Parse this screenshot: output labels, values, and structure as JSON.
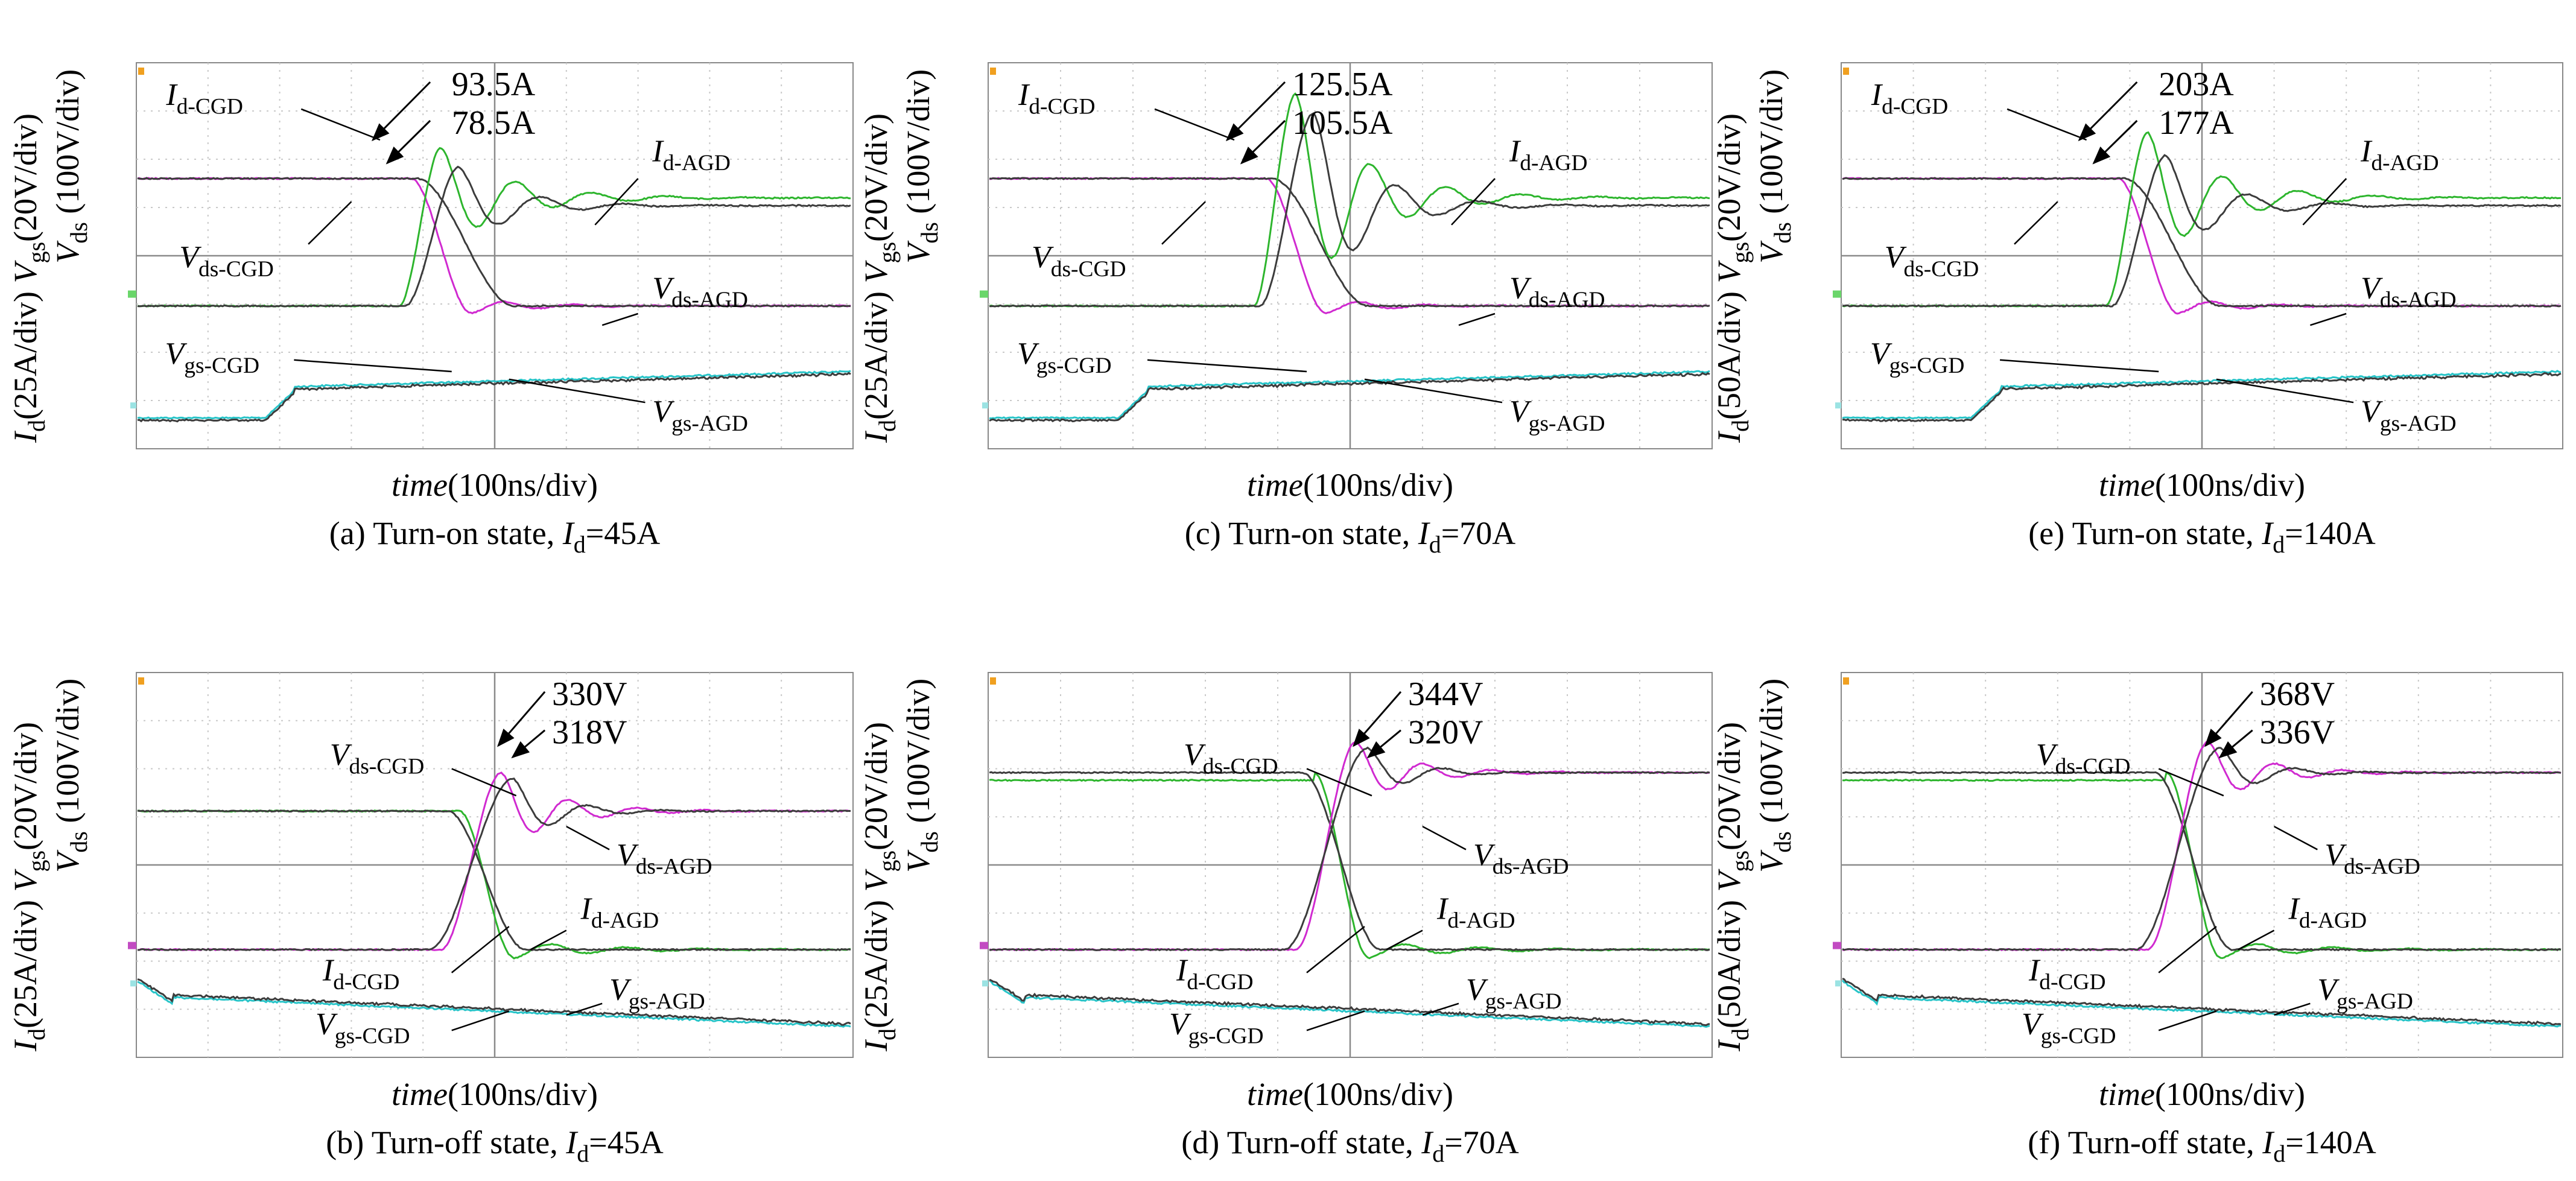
{
  "figure": {
    "colors": {
      "cgd_id": "#2db52d",
      "cgd_vds": "#d02ad0",
      "cgd_vgs": "#27c4c8",
      "agd": "#3c3c3c",
      "grid": "#c9c9c9",
      "frame": "#888888",
      "marker_green": "#6ad66a",
      "marker_magenta": "#c24bc2",
      "marker_cyan": "#9be3e3",
      "marker_orange": "#f0a020"
    },
    "axis_labels": {
      "y_vds": "V",
      "y_vds_sub": "ds",
      "y_vds_unit": "(100V/div)",
      "y_vgs": "V",
      "y_vgs_sub": "gs",
      "y_vgs_unit": "(20V/div)",
      "y_id": "I",
      "y_id_sub": "d",
      "x_time": "time",
      "x_time_unit": "(100ns/div)"
    },
    "panels": [
      {
        "id": "a",
        "caption": {
          "prefix": "(a) Turn-on state, ",
          "var": "I",
          "sub": "d",
          "suffix": "=45A"
        },
        "id_scale": "(25A/div)",
        "labels": {
          "l1": "I",
          "l1s": "d-CGD",
          "l2": "V",
          "l2s": "ds-CGD",
          "l3": "I",
          "l3s": "d-AGD",
          "l4": "V",
          "l4s": "ds-AGD",
          "l5": "V",
          "l5s": "gs-CGD",
          "l6": "V",
          "l6s": "gs-AGD"
        },
        "peaks": [
          "93.5A",
          "78.5A"
        ]
      },
      {
        "id": "b",
        "caption": {
          "prefix": "(b) Turn-off state, ",
          "var": "I",
          "sub": "d",
          "suffix": "=45A"
        },
        "id_scale": "(25A/div)",
        "labels": {
          "l1": "V",
          "l1s": "ds-CGD",
          "l2": "V",
          "l2s": "ds-AGD",
          "l3": "I",
          "l3s": "d-AGD",
          "l4": "I",
          "l4s": "d-CGD",
          "l5": "V",
          "l5s": "gs-AGD",
          "l6": "V",
          "l6s": "gs-CGD"
        },
        "peaks": [
          "330V",
          "318V"
        ]
      },
      {
        "id": "c",
        "caption": {
          "prefix": "(c) Turn-on state,  ",
          "var": "I",
          "sub": "d",
          "suffix": "=70A"
        },
        "id_scale": "(25A/div)",
        "labels": {
          "l1": "I",
          "l1s": "d-CGD",
          "l2": "V",
          "l2s": "ds-CGD",
          "l3": "I",
          "l3s": "d-AGD",
          "l4": "V",
          "l4s": "ds-AGD",
          "l5": "V",
          "l5s": "gs-CGD",
          "l6": "V",
          "l6s": "gs-AGD"
        },
        "peaks": [
          "125.5A",
          "105.5A"
        ]
      },
      {
        "id": "d",
        "caption": {
          "prefix": "(d) Turn-off state,  ",
          "var": "I",
          "sub": "d",
          "suffix": "=70A"
        },
        "id_scale": "(25A/div)",
        "labels": {
          "l1": "V",
          "l1s": "ds-CGD",
          "l2": "V",
          "l2s": "ds-AGD",
          "l3": "I",
          "l3s": "d-AGD",
          "l4": "I",
          "l4s": "d-CGD",
          "l5": "V",
          "l5s": "gs-AGD",
          "l6": "V",
          "l6s": "gs-CGD"
        },
        "peaks": [
          "344V",
          "320V"
        ]
      },
      {
        "id": "e",
        "caption": {
          "prefix": "(e) Turn-on state,  ",
          "var": "I",
          "sub": "d",
          "suffix": "=140A"
        },
        "id_scale": "(50A/div)",
        "labels": {
          "l1": "I",
          "l1s": "d-CGD",
          "l2": "V",
          "l2s": "ds-CGD",
          "l3": "I",
          "l3s": "d-AGD",
          "l4": "V",
          "l4s": "ds-AGD",
          "l5": "V",
          "l5s": "gs-CGD",
          "l6": "V",
          "l6s": "gs-AGD"
        },
        "peaks": [
          "203A",
          "177A"
        ]
      },
      {
        "id": "f",
        "caption": {
          "prefix": "(f) Turn-off state,  ",
          "var": "I",
          "sub": "d",
          "suffix": "=140A"
        },
        "id_scale": "(50A/div)",
        "labels": {
          "l1": "V",
          "l1s": "ds-CGD",
          "l2": "V",
          "l2s": "ds-AGD",
          "l3": "I",
          "l3s": "d-AGD",
          "l4": "I",
          "l4s": "d-CGD",
          "l5": "V",
          "l5s": "gs-AGD",
          "l6": "V",
          "l6s": "gs-CGD"
        },
        "peaks": [
          "368V",
          "336V"
        ]
      }
    ]
  },
  "chart_data": [
    {
      "type": "line",
      "panel": "a",
      "x_unit": "100ns/div",
      "grid": true,
      "annotated_peaks": {
        "I_d-CGD": "93.5A",
        "I_d-AGD": "78.5A"
      },
      "series": [
        {
          "name": "I_d-CGD"
        },
        {
          "name": "I_d-AGD"
        },
        {
          "name": "V_ds-CGD"
        },
        {
          "name": "V_ds-AGD"
        },
        {
          "name": "V_gs-CGD"
        },
        {
          "name": "V_gs-AGD"
        }
      ]
    },
    {
      "type": "line",
      "panel": "b",
      "x_unit": "100ns/div",
      "grid": true,
      "annotated_peaks": {
        "V_ds-CGD": "330V",
        "V_ds-AGD": "318V"
      },
      "series": [
        {
          "name": "V_ds-CGD"
        },
        {
          "name": "V_ds-AGD"
        },
        {
          "name": "I_d-CGD"
        },
        {
          "name": "I_d-AGD"
        },
        {
          "name": "V_gs-CGD"
        },
        {
          "name": "V_gs-AGD"
        }
      ]
    },
    {
      "type": "line",
      "panel": "c",
      "x_unit": "100ns/div",
      "grid": true,
      "annotated_peaks": {
        "I_d-CGD": "125.5A",
        "I_d-AGD": "105.5A"
      },
      "series": [
        {
          "name": "I_d-CGD"
        },
        {
          "name": "I_d-AGD"
        },
        {
          "name": "V_ds-CGD"
        },
        {
          "name": "V_ds-AGD"
        },
        {
          "name": "V_gs-CGD"
        },
        {
          "name": "V_gs-AGD"
        }
      ]
    },
    {
      "type": "line",
      "panel": "d",
      "x_unit": "100ns/div",
      "grid": true,
      "annotated_peaks": {
        "V_ds-CGD": "344V",
        "V_ds-AGD": "320V"
      },
      "series": [
        {
          "name": "V_ds-CGD"
        },
        {
          "name": "V_ds-AGD"
        },
        {
          "name": "I_d-CGD"
        },
        {
          "name": "I_d-AGD"
        },
        {
          "name": "V_gs-CGD"
        },
        {
          "name": "V_gs-AGD"
        }
      ]
    },
    {
      "type": "line",
      "panel": "e",
      "x_unit": "100ns/div",
      "grid": true,
      "annotated_peaks": {
        "I_d-CGD": "203A",
        "I_d-AGD": "177A"
      },
      "series": [
        {
          "name": "I_d-CGD"
        },
        {
          "name": "I_d-AGD"
        },
        {
          "name": "V_ds-CGD"
        },
        {
          "name": "V_ds-AGD"
        },
        {
          "name": "V_gs-CGD"
        },
        {
          "name": "V_gs-AGD"
        }
      ]
    },
    {
      "type": "line",
      "panel": "f",
      "x_unit": "100ns/div",
      "grid": true,
      "annotated_peaks": {
        "V_ds-CGD": "368V",
        "V_ds-AGD": "336V"
      },
      "series": [
        {
          "name": "V_ds-CGD"
        },
        {
          "name": "V_ds-AGD"
        },
        {
          "name": "I_d-CGD"
        },
        {
          "name": "I_d-AGD"
        },
        {
          "name": "V_gs-CGD"
        },
        {
          "name": "V_gs-AGD"
        }
      ]
    }
  ]
}
